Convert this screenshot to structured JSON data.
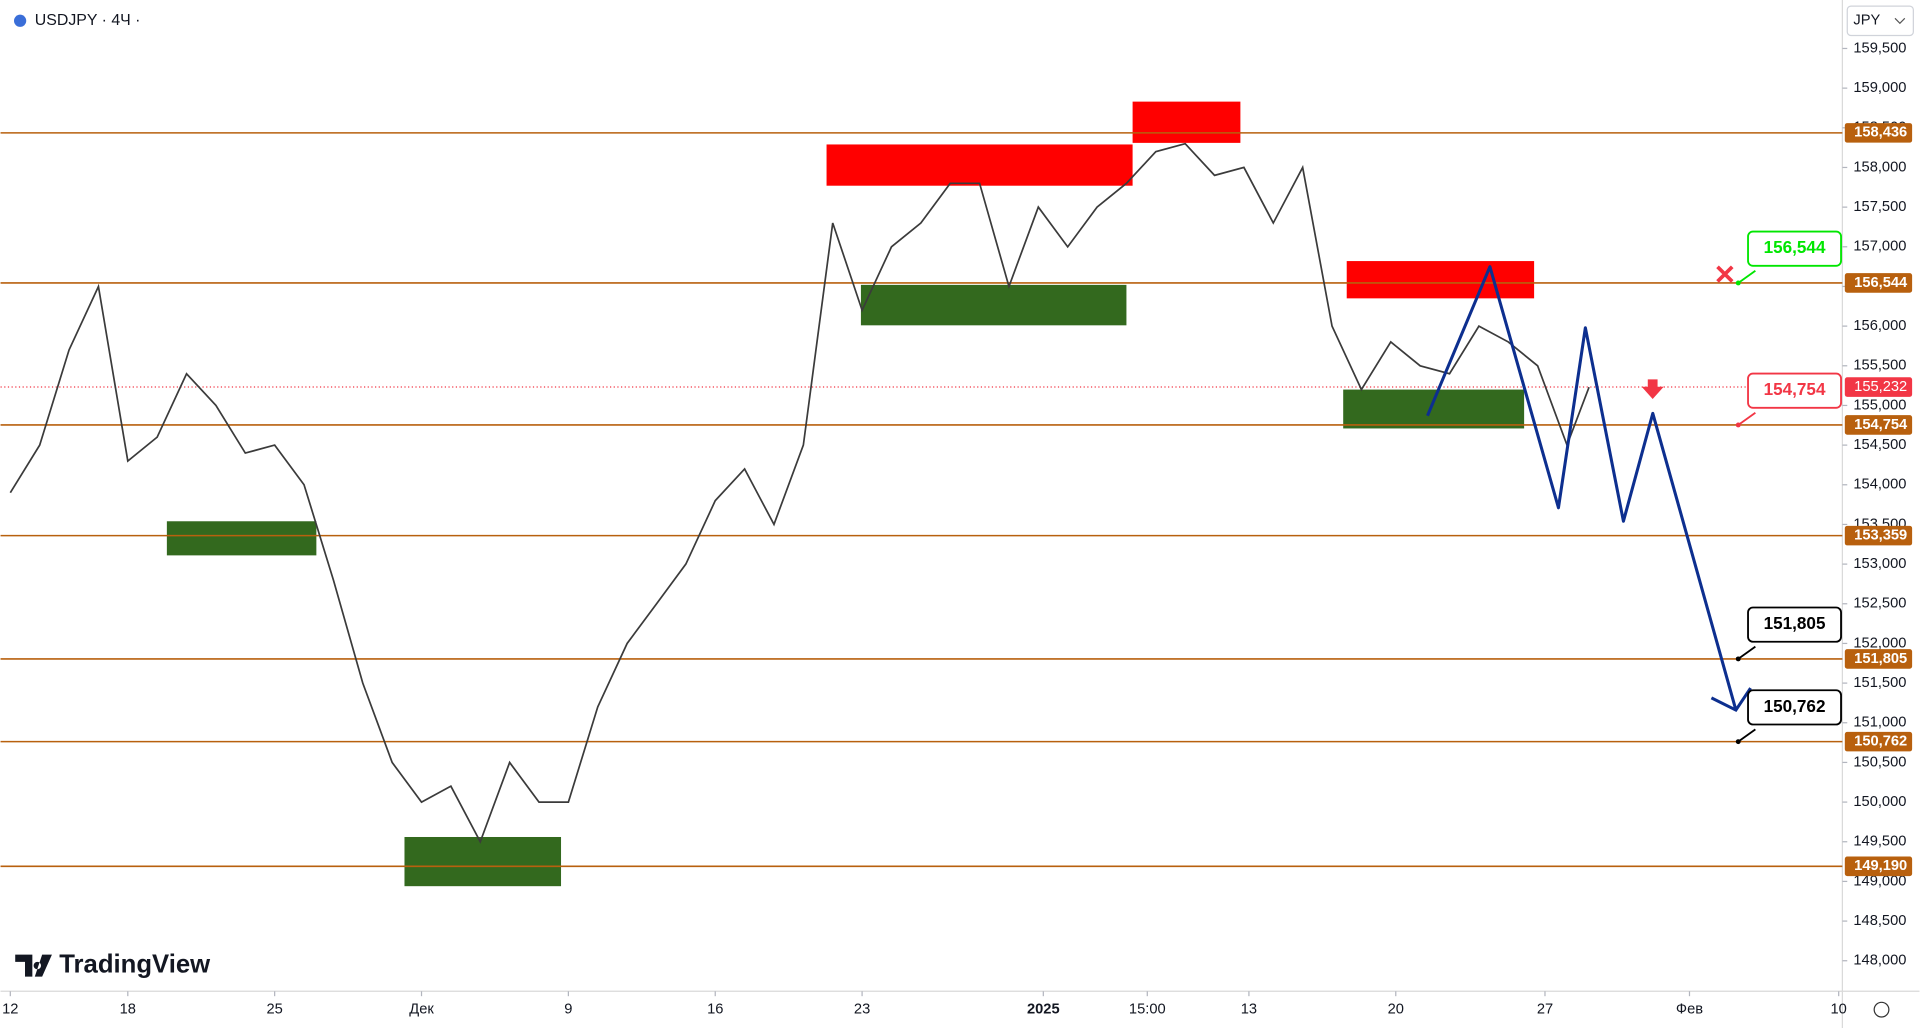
{
  "chart_data": {
    "type": "line",
    "title": "USDJPY · 4Ч ·",
    "currency": "JPY",
    "branding": "TradingView",
    "color": "#3b3b3b",
    "x": [
      0,
      1,
      2,
      3,
      4,
      5,
      6,
      7,
      8,
      9,
      10,
      11,
      12,
      13,
      14,
      15,
      16,
      17,
      18,
      19,
      20,
      21,
      22,
      23,
      24,
      25,
      26,
      27,
      28,
      29,
      30,
      31,
      32,
      33,
      34,
      35,
      36,
      37,
      38,
      39,
      40,
      41,
      42,
      43,
      44,
      45,
      46,
      47,
      48,
      49,
      50,
      51,
      52,
      53,
      53.75
    ],
    "values": [
      153.9,
      154.5,
      155.7,
      156.5,
      154.3,
      154.6,
      155.4,
      155.0,
      154.4,
      154.5,
      154.0,
      152.8,
      151.5,
      150.5,
      150.0,
      150.2,
      149.5,
      150.5,
      150.0,
      150.0,
      151.2,
      152.0,
      152.5,
      153.0,
      153.8,
      154.2,
      153.5,
      154.5,
      157.3,
      156.2,
      157.0,
      157.3,
      157.8,
      157.8,
      156.5,
      157.5,
      157.0,
      157.5,
      157.8,
      158.2,
      158.3,
      157.9,
      158.0,
      157.3,
      158.0,
      156.0,
      155.2,
      155.8,
      155.5,
      155.4,
      156.0,
      155.8,
      155.5,
      154.5,
      155.23
    ],
    "xlim": [
      -0.333,
      62.375
    ],
    "xticks": [
      {
        "value": 0,
        "label": "12"
      },
      {
        "value": 4,
        "label": "18"
      },
      {
        "value": 9,
        "label": "25"
      },
      {
        "value": 14,
        "label": "Дек"
      },
      {
        "value": 19,
        "label": "9"
      },
      {
        "value": 24,
        "label": "16"
      },
      {
        "value": 29,
        "label": "23"
      },
      {
        "value": 35.17,
        "label": "2025"
      },
      {
        "value": 38.71,
        "label": "15:00"
      },
      {
        "value": 42.17,
        "label": "13"
      },
      {
        "value": 47.17,
        "label": "20"
      },
      {
        "value": 52.25,
        "label": "27"
      },
      {
        "value": 57.17,
        "label": "Фев"
      },
      {
        "value": 62.25,
        "label": "10"
      }
    ],
    "ylim": [
      147.615,
      160.111
    ],
    "yticks": [
      {
        "value": 148,
        "label": "148,000"
      },
      {
        "value": 148.5,
        "label": "148,500"
      },
      {
        "value": 149,
        "label": "149,000"
      },
      {
        "value": 149.5,
        "label": "149,500"
      },
      {
        "value": 150,
        "label": "150,000"
      },
      {
        "value": 150.5,
        "label": "150,500"
      },
      {
        "value": 151,
        "label": "151,000"
      },
      {
        "value": 151.5,
        "label": "151,500"
      },
      {
        "value": 152,
        "label": "152,000"
      },
      {
        "value": 152.5,
        "label": "152,500"
      },
      {
        "value": 153,
        "label": "153,000"
      },
      {
        "value": 153.5,
        "label": "153,500"
      },
      {
        "value": 154,
        "label": "154,000"
      },
      {
        "value": 154.5,
        "label": "154,500"
      },
      {
        "value": 155,
        "label": "155,000"
      },
      {
        "value": 155.5,
        "label": "155,500"
      },
      {
        "value": 156,
        "label": "156,000"
      },
      {
        "value": 156.5,
        "label": "156,500"
      },
      {
        "value": 157,
        "label": "157,000"
      },
      {
        "value": 157.5,
        "label": "157,500"
      },
      {
        "value": 158,
        "label": "158,000"
      },
      {
        "value": 158.5,
        "label": "158,500"
      },
      {
        "value": 159,
        "label": "159,000"
      },
      {
        "value": 159.5,
        "label": "159,500"
      }
    ],
    "current": {
      "value": 155.232,
      "label": "155,232",
      "color": "#f23645"
    },
    "levels": [
      {
        "value": 158.436,
        "label": "158,436"
      },
      {
        "value": 156.544,
        "label": "156,544"
      },
      {
        "value": 154.754,
        "label": "154,754"
      },
      {
        "value": 153.359,
        "label": "153,359"
      },
      {
        "value": 151.805,
        "label": "151,805"
      },
      {
        "value": 150.762,
        "label": "150,762"
      },
      {
        "value": 149.19,
        "label": "149,190"
      }
    ],
    "level_color": "#b8600e",
    "zones": [
      {
        "x": [
          27.79,
          38.21
        ],
        "y": [
          157.77,
          158.29
        ],
        "color": "#ff0000"
      },
      {
        "x": [
          38.21,
          41.88
        ],
        "y": [
          158.31,
          158.83
        ],
        "color": "#ff0000"
      },
      {
        "x": [
          45.5,
          51.88
        ],
        "y": [
          156.35,
          156.82
        ],
        "color": "#ff0000"
      },
      {
        "x": [
          5.33,
          10.42
        ],
        "y": [
          153.11,
          153.54
        ],
        "color": "#33691e"
      },
      {
        "x": [
          13.42,
          18.75
        ],
        "y": [
          148.94,
          149.56
        ],
        "color": "#33691e"
      },
      {
        "x": [
          28.96,
          38.0
        ],
        "y": [
          156.01,
          156.52
        ],
        "color": "#33691e"
      },
      {
        "x": [
          45.38,
          51.54
        ],
        "y": [
          154.71,
          155.2
        ],
        "color": "#33691e"
      }
    ],
    "projection": {
      "x": [
        48.25,
        50.375,
        52.71,
        53.625,
        54.92,
        55.92,
        58.75
      ],
      "y": [
        154.87,
        156.75,
        153.71,
        155.98,
        153.54,
        154.9,
        151.16
      ],
      "color": "#0d2f8f"
    },
    "annotations": [
      {
        "x": 58.83,
        "value": 156.544,
        "label": "156,544",
        "color": "#00e600"
      },
      {
        "x": 58.83,
        "value": 154.754,
        "label": "154,754",
        "color": "#f23645"
      },
      {
        "x": 58.83,
        "value": 151.805,
        "label": "151,805",
        "color": "#000000"
      },
      {
        "x": 58.83,
        "value": 150.762,
        "label": "150,762",
        "color": "#000000"
      }
    ]
  }
}
